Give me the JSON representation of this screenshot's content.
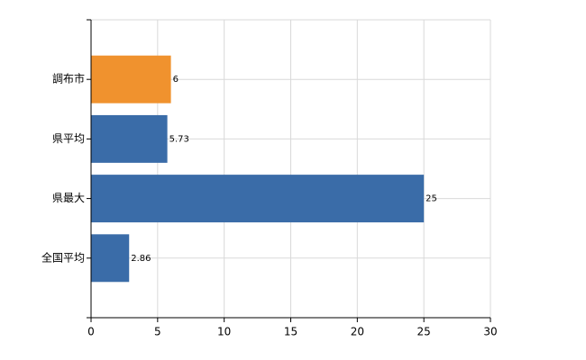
{
  "chart_data": {
    "type": "hbar",
    "categories": [
      "調布市",
      "県平均",
      "県最大",
      "全国平均"
    ],
    "values": [
      6,
      5.73,
      25,
      2.86
    ],
    "colors": [
      "#f0922e",
      "#3a6ca8",
      "#3a6ca8",
      "#3a6ca8"
    ],
    "xlim": [
      0,
      30
    ],
    "xticks": [
      0,
      5,
      10,
      15,
      20,
      25,
      30
    ],
    "grid": true
  }
}
